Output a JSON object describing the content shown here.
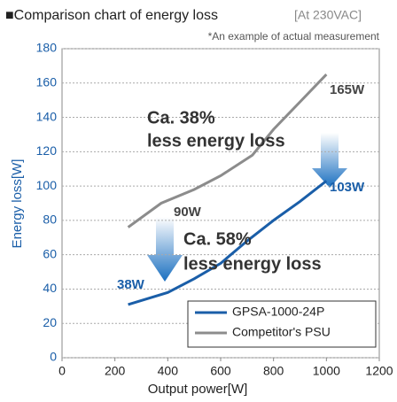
{
  "chart_data": {
    "type": "line",
    "title": "■Comparison chart of energy loss",
    "title_note": "[At 230VAC]",
    "subtitle": "*An example of actual measurement",
    "x_label": "Output power[W]",
    "y_label": "Energy loss[W]",
    "xlim": [
      0,
      1200
    ],
    "xticks": [
      0,
      200,
      400,
      600,
      800,
      1000,
      1200
    ],
    "ylim": [
      0,
      180
    ],
    "yticks": [
      0,
      20,
      40,
      60,
      80,
      100,
      120,
      140,
      160,
      180
    ],
    "grid": true,
    "legend": "lower right",
    "series": [
      {
        "name": "GPSA-1000-24P",
        "color": "#1a5ea8",
        "x": [
          250,
          400,
          500,
          600,
          700,
          800,
          900,
          1000
        ],
        "values": [
          31,
          38,
          46,
          55,
          68,
          80,
          91,
          103
        ]
      },
      {
        "name": "Competitor's PSU",
        "color": "#8c8c8c",
        "x": [
          250,
          375,
          500,
          600,
          720,
          800,
          900,
          1000
        ],
        "values": [
          76,
          90,
          98,
          106,
          118,
          133,
          149,
          165
        ]
      }
    ],
    "annotations": [
      "165W",
      "103W",
      "90W",
      "38W",
      "Ca. 38%",
      "less energy loss",
      "Ca. 58%",
      "less energy loss"
    ]
  }
}
